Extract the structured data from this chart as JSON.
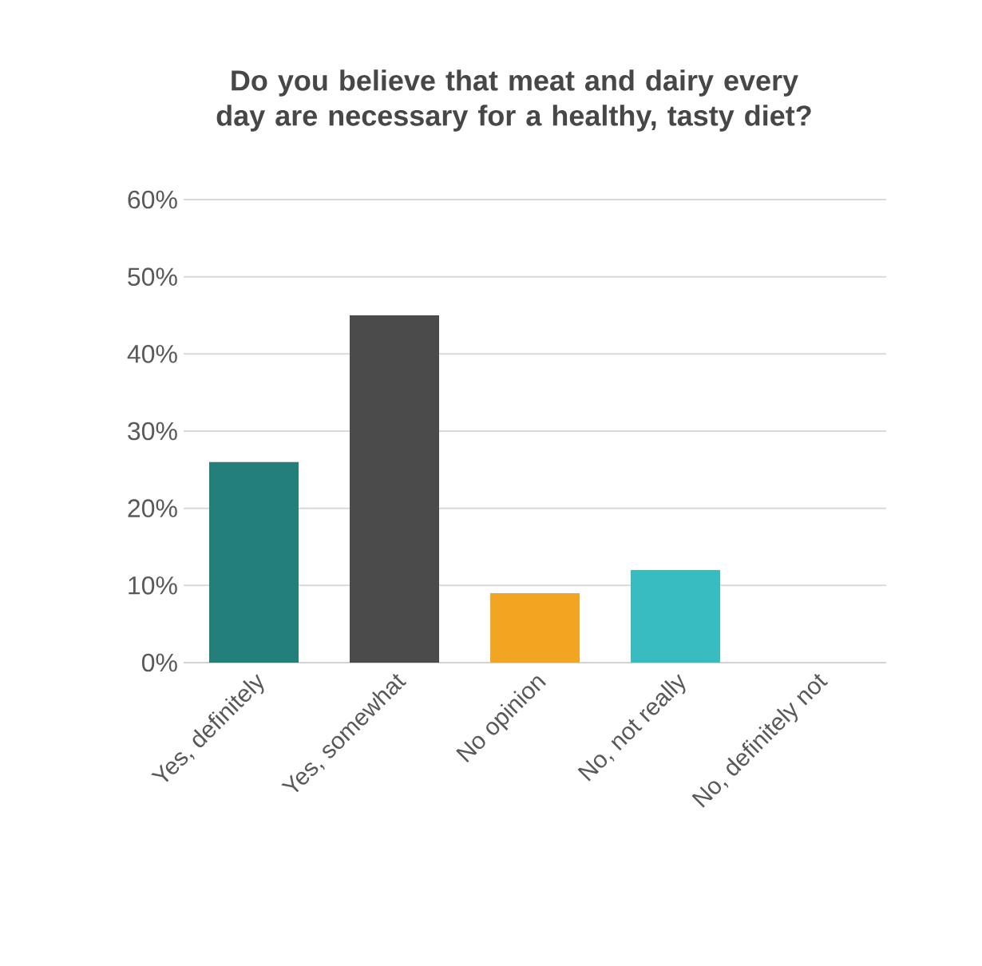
{
  "chart_data": {
    "type": "bar",
    "title": "Do you believe that meat and dairy every day are necessary for a healthy, tasty diet?",
    "categories": [
      "Yes, definitely",
      "Yes, somewhat",
      "No opinion",
      "No, not really",
      "No, definitely not"
    ],
    "values": [
      26,
      45,
      9,
      12,
      0
    ],
    "colors": [
      "#227f7a",
      "#4b4b4b",
      "#f2a521",
      "#38bcc2",
      "#a5a5a5"
    ],
    "ylim": [
      0,
      60
    ],
    "yticks": [
      {
        "value": 0,
        "label": "0%"
      },
      {
        "value": 10,
        "label": "10%"
      },
      {
        "value": 20,
        "label": "20%"
      },
      {
        "value": 30,
        "label": "30%"
      },
      {
        "value": 40,
        "label": "40%"
      },
      {
        "value": 50,
        "label": "50%"
      },
      {
        "value": 60,
        "label": "60%"
      }
    ],
    "grid": "y"
  }
}
